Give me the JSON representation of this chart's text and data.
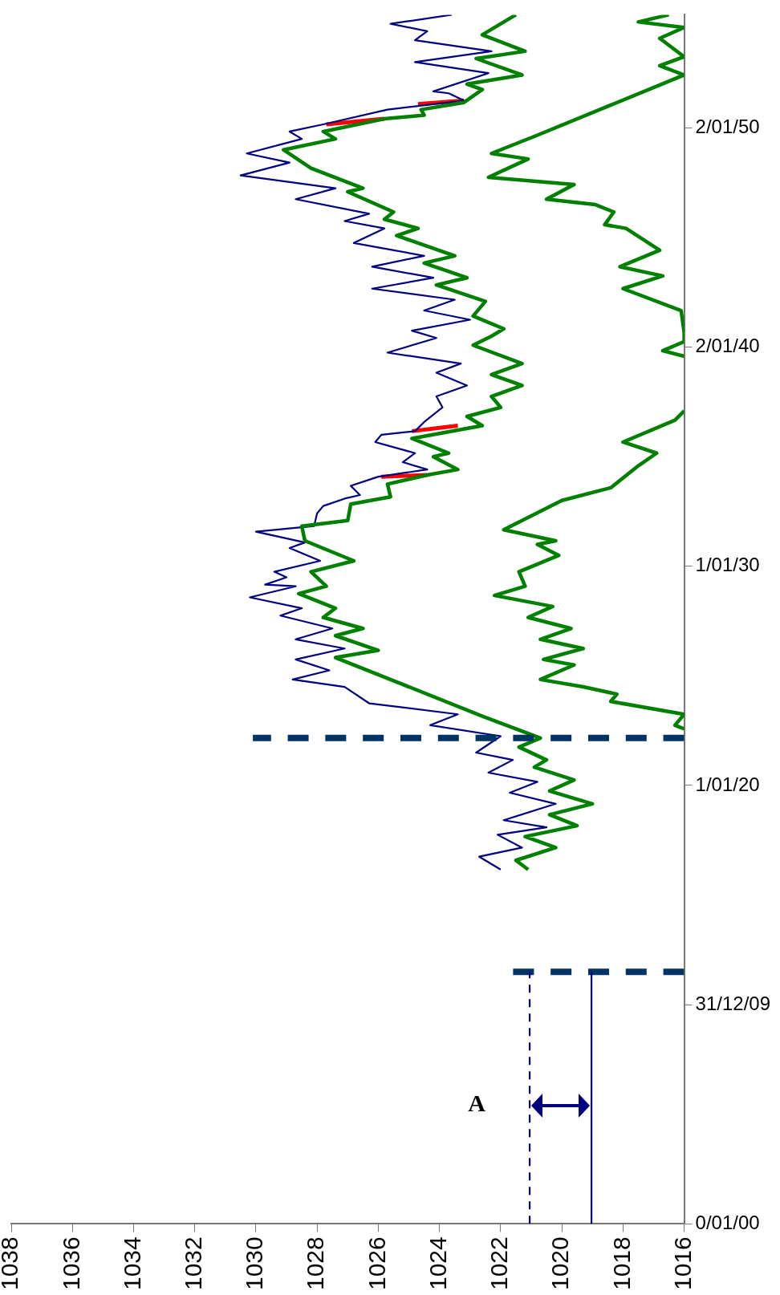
{
  "chart_data": {
    "type": "line",
    "orientation": "horizontal",
    "marker": "none",
    "grid": false,
    "legend": false,
    "xlim": [
      1038,
      1016
    ],
    "xticks": [
      1016,
      1018,
      1020,
      1022,
      1024,
      1026,
      1028,
      1030,
      1032,
      1034,
      1036,
      1038
    ],
    "ylim": [
      "1899-12-31",
      "1955-03"
    ],
    "yticks": [
      {
        "value": "1899-12-31",
        "label": "0/01/00"
      },
      {
        "value": "1909-12-31",
        "label": "31/12/09"
      },
      {
        "value": "1920-01-01",
        "label": "1/01/20"
      },
      {
        "value": "1930-01-01",
        "label": "1/01/30"
      },
      {
        "value": "1940-01-02",
        "label": "2/01/40"
      },
      {
        "value": "1950-01-02",
        "label": "2/01/50"
      }
    ],
    "annotations": [
      "A"
    ],
    "series": [
      {
        "type": "line",
        "line_style": "dashed",
        "color": "#000080",
        "values": [
          1021.05,
          1021.05
        ],
        "x": [
          "1899-12-31",
          "1911-07"
        ]
      },
      {
        "type": "line",
        "line_style": "solid",
        "color": "#000080",
        "values": [
          1019.03,
          1019.03
        ],
        "x": [
          "1899-12-31",
          "1911-07"
        ]
      },
      {
        "type": "line",
        "line_style": "dashed",
        "color": "#003366",
        "values": [
          1016,
          1021.8
        ],
        "x": [
          "1911-07",
          "1911-07"
        ]
      },
      {
        "type": "line",
        "line_style": "dashed",
        "color": "#003366",
        "values": [
          1016,
          1030.1
        ],
        "x": [
          "1922-03",
          "1922-03"
        ]
      },
      {
        "type": "line",
        "line_style": "solid",
        "color": "#008000",
        "x": [
          "1922-08",
          "1922-10",
          "1923-04",
          "1923-11",
          "1924-03",
          "1924-07",
          "1924-11",
          "1925-07",
          "1925-10",
          "1926-04",
          "1926-09",
          "1927-03",
          "1927-09",
          "1928-03",
          "1928-09",
          "1929-02",
          "1929-10",
          "1930-07",
          "1931-01",
          "1931-03",
          "1931-09",
          "1933-01",
          "1933-08",
          "1934-08",
          "1935-03",
          "1935-09",
          "1936-09",
          "1937-02",
          null,
          "1939-08",
          "1939-11",
          "1940-04",
          "1940-09",
          "1941-09",
          "1942-09",
          "1943-04",
          "1943-09",
          "1944-06",
          "1945-06",
          "1945-08",
          "1946-03",
          "1946-07",
          "1946-10",
          "1947-06",
          "1947-10",
          "1948-08",
          "1948-11",
          "1949-09",
          "1952-06",
          "1952-11",
          "1953-04",
          "1954-02",
          "1954-08",
          "1954-11",
          "1955-03"
        ],
        "values": [
          1016.0,
          1016.3,
          1016.0,
          1018.4,
          1018.2,
          1019.3,
          1020.7,
          1019.6,
          1020.6,
          1019.3,
          1020.7,
          1019.7,
          1021.1,
          1020.3,
          1022.2,
          1021.2,
          1021.4,
          1020.1,
          1020.8,
          1020.2,
          1021.9,
          1020.0,
          1018.4,
          1017.5,
          1016.9,
          1018.0,
          1016.3,
          1016.0,
          null,
          1016.0,
          1016.7,
          1016.0,
          1016.0,
          1016.1,
          1018.0,
          1016.7,
          1018.1,
          1016.8,
          1017.9,
          1018.6,
          1018.3,
          1018.9,
          1020.5,
          1019.6,
          1022.4,
          1021.1,
          1022.3,
          1020.8,
          1016.0,
          1016.8,
          1016.0,
          1016.8,
          1016.0,
          1017.5,
          1016.5
        ]
      },
      {
        "type": "line",
        "line_style": "solid",
        "color": "#008000",
        "x": [
          "1916-03",
          "1916-08",
          "1917-03",
          "1917-09",
          "1918-03",
          "1918-09",
          "1919-03",
          "1919-10",
          "1920-04",
          "1920-11",
          "1921-03",
          "1921-10",
          "1922-03",
          "1923-03",
          "1925-11",
          "1926-03",
          "1926-11",
          "1927-03",
          "1927-09",
          "1928-02",
          "1928-10",
          "1929-02",
          "1929-10",
          "1930-04",
          "1931-03",
          "1931-11",
          "1932-02",
          "1932-11",
          "1933-03",
          "1933-10",
          "1934-03",
          "1934-06",
          "1935-01",
          "1935-03",
          "1935-11",
          "1936-06",
          "1936-11",
          "1937-04",
          "1937-10",
          "1938-04",
          "1938-10",
          "1939-04",
          "1940-02",
          "1940-07",
          "1940-11",
          "1941-06",
          "1942-02",
          "1942-11",
          "1943-03",
          "1943-11",
          "1944-03",
          "1945-02",
          "1945-06",
          "1945-11",
          "1946-03",
          "1947-02",
          "1947-04",
          "1948-03",
          "1949-01",
          "1949-07",
          "1949-11",
          "1950-06",
          "1950-08",
          "1950-11",
          "1951-03",
          "1951-10",
          "1952-01",
          "1952-06",
          "1953-03",
          "1953-07",
          "1954-04",
          "1955-03"
        ],
        "values": [
          1021.1,
          1021.5,
          1020.2,
          1021.2,
          1019.5,
          1020.4,
          1019.0,
          1020.4,
          1019.6,
          1020.9,
          1020.5,
          1021.4,
          1020.7,
          1022.6,
          1027.4,
          1026.0,
          1027.4,
          1026.5,
          1027.8,
          1027.4,
          1028.6,
          1027.7,
          1028.2,
          1026.8,
          1028.4,
          1028.5,
          1027.0,
          1026.9,
          1025.6,
          1025.7,
          1024.4,
          1023.4,
          1024.2,
          1023.7,
          1024.9,
          1022.6,
          1023.1,
          1022.0,
          1022.3,
          1021.3,
          1022.3,
          1021.3,
          1022.9,
          1022.3,
          1021.9,
          1022.9,
          1022.5,
          1024.1,
          1023.1,
          1024.5,
          1023.5,
          1025.4,
          1024.7,
          1025.8,
          1025.5,
          1027.0,
          1026.5,
          1028.2,
          1029.1,
          1027.4,
          1027.8,
          1025.8,
          1024.5,
          1024.6,
          1023.2,
          1022.6,
          1023.1,
          1021.3,
          1022.8,
          1021.2,
          1022.6,
          1021.5
        ]
      },
      {
        "type": "line",
        "line_style": "solid",
        "color": "#000080",
        "x": [
          "1916-03",
          "1916-10",
          "1917-03",
          "1917-10",
          "1918-02",
          "1918-06",
          "1919-03",
          "1919-09",
          "1920-03",
          "1920-08",
          "1921-03",
          "1921-07",
          "1922-04",
          "1922-10",
          "1923-04",
          "1923-10",
          "1924-07",
          "1924-11",
          "1925-04",
          "1925-10",
          "1926-04",
          "1926-09",
          "1927-03",
          "1927-10",
          "1928-02",
          "1928-08",
          "1929-02",
          "1929-03",
          "1929-07",
          "1929-10",
          "1930-04",
          "1930-11",
          "1931-02",
          "1931-08",
          "1931-11",
          "1932-06",
          "1932-10",
          "1933-02",
          "1933-04",
          "1933-09",
          "1934-02",
          "1934-06",
          "1934-10",
          "1935-03",
          "1935-09",
          "1936-01",
          "1936-03",
          "1936-08",
          "1937-04",
          "1937-10",
          "1938-04",
          "1938-11",
          "1939-04",
          "1939-10",
          "1940-06",
          "1940-10",
          "1941-04",
          "1941-09",
          "1942-03",
          "1942-09",
          "1943-03",
          "1943-09",
          "1944-03",
          "1944-10",
          "1945-06",
          "1945-10",
          "1946-02",
          "1946-10",
          "1947-04",
          "1947-11",
          "1948-06",
          "1948-11",
          "1949-07",
          "1949-11",
          "1950-03",
          "1950-11",
          "1951-01",
          "1951-04",
          "1951-08",
          "1951-09",
          "1952-07",
          "1953-01",
          "1953-07",
          "1954-01",
          "1954-06",
          "1954-10",
          "1955-03"
        ],
        "values": [
          1022.0,
          1022.7,
          1021.3,
          1022.1,
          1020.5,
          1021.9,
          1020.2,
          1021.7,
          1020.8,
          1022.4,
          1021.6,
          1022.8,
          1022.0,
          1024.3,
          1023.4,
          1026.3,
          1027.1,
          1028.8,
          1027.6,
          1028.7,
          1027.1,
          1028.7,
          1027.5,
          1029.2,
          1028.5,
          1030.2,
          1028.7,
          1029.7,
          1029.0,
          1029.4,
          1027.9,
          1028.9,
          1028.4,
          1030.0,
          1028.1,
          1028.0,
          1027.8,
          1027.1,
          1026.6,
          1026.9,
          1026.0,
          1024.4,
          1025.2,
          1024.8,
          1026.1,
          1025.9,
          1024.8,
          1024.5,
          1023.9,
          1024.1,
          1023.1,
          1024.1,
          1023.3,
          1025.7,
          1024.1,
          1024.9,
          1023.0,
          1024.5,
          1023.5,
          1026.2,
          1024.2,
          1026.2,
          1024.5,
          1026.8,
          1025.8,
          1027.1,
          1026.3,
          1028.7,
          1027.4,
          1030.5,
          1028.9,
          1030.3,
          1028.5,
          1028.9,
          1027.8,
          1025.7,
          1024.7,
          1023.2,
          1023.7,
          1024.2,
          1022.4,
          1024.8,
          1022.3,
          1024.8,
          1024.4,
          1025.6,
          1023.6
        ]
      },
      {
        "type": "line",
        "line_style": "solid",
        "color": "#ff0000",
        "x": [
          "1934-02",
          "1934-03",
          null,
          "1936-03",
          "1936-06",
          null,
          "1950-03",
          "1950-06",
          null,
          "1951-02",
          "1951-04"
        ],
        "values": [
          1025.9,
          1024.4,
          null,
          1024.9,
          1023.4,
          null,
          1027.7,
          1025.8,
          null,
          1024.7,
          1023.2
        ]
      }
    ]
  }
}
